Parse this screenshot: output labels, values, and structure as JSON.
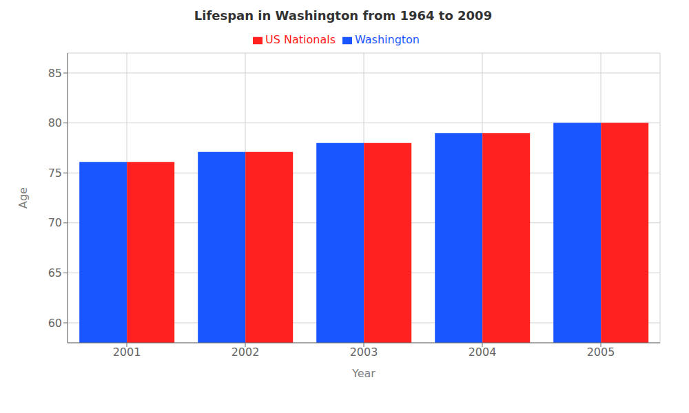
{
  "chart_data": {
    "type": "bar",
    "title": "Lifespan in Washington from 1964 to 2009",
    "xlabel": "Year",
    "ylabel": "Age",
    "categories": [
      "2001",
      "2002",
      "2003",
      "2004",
      "2005"
    ],
    "series": [
      {
        "name": "Washington",
        "color": "#1a56ff",
        "values": [
          76.1,
          77.1,
          78.0,
          79.0,
          80.0
        ]
      },
      {
        "name": "US Nationals",
        "color": "#ff2020",
        "values": [
          76.1,
          77.1,
          78.0,
          79.0,
          80.0
        ]
      }
    ],
    "ylim": [
      58,
      87
    ],
    "yticks": [
      60,
      65,
      70,
      75,
      80,
      85
    ],
    "grid": true,
    "legend": "top"
  }
}
